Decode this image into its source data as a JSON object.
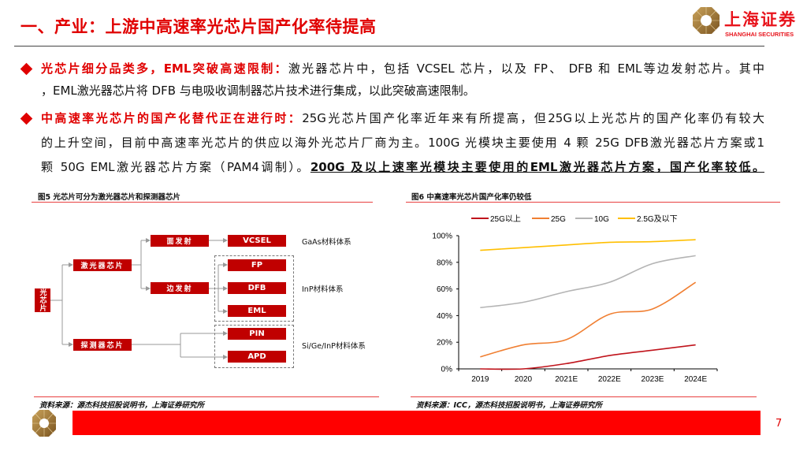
{
  "header": {
    "title": "一、产业：上游中高速率光芯片国产化率待提高",
    "logo": {
      "cn": "上海证券",
      "en": "SHANGHAI SECURITIES"
    }
  },
  "bullets": [
    {
      "lines": [
        {
          "lead": "光芯片细分品类多，EML突破高速限制：",
          "text": "激光器芯片中，包括 VCSEL 芯片，以及 FP、 DFB 和 EML等边发射芯片。其中"
        },
        {
          "text": "，EML激光器芯片将 DFB 与电吸收调制器芯片技术进行集成，以此突破高速限制。"
        }
      ]
    },
    {
      "lines": [
        {
          "lead": "中高速率光芯片的国产化替代正在进行时：",
          "text": "25G光芯片国产化率近年来有所提高，但25G以上光芯片的国产化率仍有较大"
        },
        {
          "text": "的上升空间，目前中高速率光芯片的供应以海外光芯片厂商为主。100G 光模块主要使用 4 颗 25G DFB激光器芯片方案或1"
        },
        {
          "text": "颗 50G EML激光器芯片方案（PAM4调制）。",
          "emphasis": "200G 及以上速率光模块主要使用的EML激光器芯片方案，国产化率较低。"
        }
      ]
    }
  ],
  "figure5": {
    "caption": "图5 光芯片可分为激光器芯片和探测器芯片",
    "root": "光芯片",
    "laser": "激光器芯片",
    "detector": "探测器芯片",
    "surface": "面发射",
    "edge": "边发射",
    "chips": {
      "vcsel": "VCSEL",
      "fp": "FP",
      "dfb": "DFB",
      "eml": "EML",
      "pin": "PIN",
      "apd": "APD"
    },
    "materials": {
      "gaas": "GaAs材料体系",
      "inp": "InP材料体系",
      "sigeinp": "Si/Ge/InP材料体系"
    },
    "source": "资料来源：源杰科技招股说明书，上海证券研究所"
  },
  "figure6": {
    "caption": "图6 中高速率光芯片国产化率仍较低",
    "source": "资料来源：ICC，源杰科技招股说明书，上海证券研究所"
  },
  "chart_data": {
    "type": "line",
    "title": "",
    "categories": [
      "2019",
      "2020",
      "2021E",
      "2022E",
      "2023E",
      "2024E"
    ],
    "ylim": [
      0,
      100
    ],
    "yticks": [
      "0%",
      "20%",
      "40%",
      "60%",
      "80%",
      "100%"
    ],
    "ytick_values": [
      0,
      20,
      40,
      60,
      80,
      100
    ],
    "grid": false,
    "legend_position": "top",
    "series": [
      {
        "name": "25G以上",
        "color": "#c0141c",
        "values": [
          0,
          0,
          4,
          10,
          14,
          18
        ]
      },
      {
        "name": "25G",
        "color": "#f07f32",
        "values": [
          9,
          18,
          22,
          41,
          45,
          65
        ]
      },
      {
        "name": "10G",
        "color": "#b4b4b4",
        "values": [
          46,
          50,
          58,
          65,
          79,
          85
        ]
      },
      {
        "name": "2.5G及以下",
        "color": "#ffbf00",
        "values": [
          89,
          91,
          93,
          95,
          95.5,
          97
        ]
      }
    ]
  },
  "footer": {
    "page": "7"
  },
  "colors": {
    "accent": "#e00000",
    "box": "#c00000",
    "footer_bar": "#ff0000",
    "logo_gold": "#a8803a"
  }
}
